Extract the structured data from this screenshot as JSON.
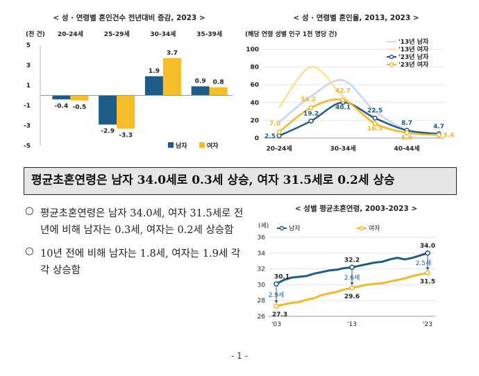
{
  "chart1": {
    "title": "< 성 · 연령별 혼인건수 전년대비 증감, 2023 >",
    "unit": "(천 건)",
    "group_labels": [
      "20-24세",
      "25-29세",
      "30-34세",
      "35-39세"
    ],
    "legend": [
      "남자",
      "여자"
    ],
    "colors": {
      "male": "#1f5b87",
      "female": "#f7bc2a"
    },
    "yticks": [
      "5",
      "3",
      "1",
      "-1",
      "-3",
      "-5"
    ]
  },
  "chart2": {
    "title": "< 성 · 연령별 혼인율, 2013, 2023 >",
    "unit": "(해당 연령 성별 인구 1천 명당 건)",
    "xticks": [
      "20-24세",
      "30-34세",
      "40-44세"
    ],
    "yticks": [
      "100",
      "80",
      "60",
      "40",
      "20",
      "0"
    ],
    "legend": [
      "'13년 남자",
      "'13년 여자",
      "'23년 남자",
      "'23년 여자"
    ],
    "colors": {
      "m13": "#c9dbef",
      "f13": "#fbe3a4",
      "m23": "#1f5b87",
      "f23": "#f5b728"
    }
  },
  "banner": {
    "text": "평균초혼연령은 남자 34.0세로 0.3세 상승, 여자 31.5세로 0.2세 상승"
  },
  "bullets": [
    {
      "mark": "○",
      "text": "평균초혼연령은 남자 34.0세, 여자 31.5세로 전년에 비해 남자는 0.3세, 여자는 0.2세 상승함"
    },
    {
      "mark": "○",
      "text": "10년 전에 비해 남자는 1.8세, 여자는 1.9세 각각 상승함"
    }
  ],
  "chart3": {
    "title": "< 성별 평균초혼연령, 2003-2023 >",
    "unit": "(세)",
    "legend": [
      "남자",
      "여자"
    ],
    "yticks": [
      "36",
      "34",
      "32",
      "30",
      "28",
      "26"
    ],
    "xticks": [
      "'03",
      "'13",
      "'23"
    ],
    "annot_male": "2.6세",
    "annot_f1": "2.9세",
    "annot_f2": "2.5세",
    "colors": {
      "male": "#1f5b87",
      "female": "#f5b728"
    }
  },
  "chart_data": [
    {
      "type": "bar",
      "categories": [
        "20-24세",
        "25-29세",
        "30-34세",
        "35-39세"
      ],
      "series": [
        {
          "name": "남자",
          "values": [
            -0.4,
            -2.9,
            1.9,
            0.9
          ]
        },
        {
          "name": "여자",
          "values": [
            -0.5,
            -3.3,
            3.7,
            0.8
          ]
        }
      ],
      "ylim": [
        -5,
        5
      ]
    },
    {
      "type": "line",
      "x": [
        "15-19",
        "20-24",
        "25-29",
        "30-34",
        "35-39",
        "40-44",
        "45-49"
      ],
      "series": [
        {
          "name": "'13년 남자",
          "values": [
            1,
            18,
            47,
            65,
            30,
            8,
            3
          ]
        },
        {
          "name": "'13년 여자",
          "values": [
            5,
            34,
            80,
            47,
            17,
            6,
            2
          ]
        },
        {
          "name": "'23년 남자",
          "values": [
            null,
            2.5,
            19.2,
            40.1,
            22.5,
            8.7,
            4.7
          ]
        },
        {
          "name": "'23년 여자",
          "values": [
            null,
            7.0,
            34.2,
            42.7,
            16.3,
            5.9,
            3.4
          ]
        }
      ],
      "labels": {
        "'23년 남자": [
          "2.5",
          "19.2",
          "40.1",
          "22.5",
          "8.7",
          "4.7"
        ],
        "'23년 여자": [
          "7.0",
          "34.2",
          "42.7",
          "16.3",
          "5.9",
          "3.4"
        ]
      },
      "ylim": [
        0,
        100
      ]
    },
    {
      "type": "line",
      "x": [
        2003,
        2004,
        2005,
        2006,
        2007,
        2008,
        2009,
        2010,
        2011,
        2012,
        2013,
        2014,
        2015,
        2016,
        2017,
        2018,
        2019,
        2020,
        2021,
        2022,
        2023
      ],
      "series": [
        {
          "name": "남자",
          "values": [
            30.1,
            30.6,
            30.9,
            31.0,
            31.1,
            31.4,
            31.6,
            31.8,
            31.9,
            32.1,
            32.2,
            32.4,
            32.6,
            32.8,
            32.9,
            33.2,
            33.4,
            33.2,
            33.4,
            33.7,
            34.0
          ]
        },
        {
          "name": "여자",
          "values": [
            27.3,
            27.5,
            27.7,
            27.8,
            28.1,
            28.3,
            28.7,
            28.9,
            29.1,
            29.4,
            29.6,
            29.8,
            30.0,
            30.1,
            30.2,
            30.4,
            30.6,
            30.8,
            31.1,
            31.3,
            31.5
          ]
        }
      ],
      "labels": {
        "남자": [
          "30.1",
          "32.2",
          "34.0"
        ],
        "여자": [
          "27.3",
          "29.6",
          "31.5"
        ]
      },
      "ylim": [
        26,
        36
      ]
    }
  ],
  "page_number": "- 1 -"
}
